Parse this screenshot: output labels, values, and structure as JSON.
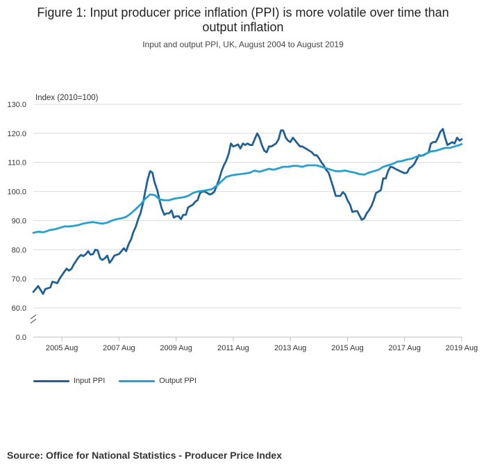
{
  "chart_data": {
    "type": "line",
    "title_line1": "Figure 1: Input producer price inflation (PPI) is more volatile over time than",
    "title_line2": "output inflation",
    "subtitle": "Input and output PPI, UK, August 2004 to August 2019",
    "ylabel": "Index (2010=100)",
    "ylim": [
      60,
      130
    ],
    "y_axis_break": true,
    "y_ticks": [
      "130.0",
      "120.0",
      "110.0",
      "100.0",
      "90.0",
      "80.0",
      "70.0",
      "60.0",
      "0.0"
    ],
    "y_tick_values": [
      130,
      120,
      110,
      100,
      90,
      80,
      70,
      60
    ],
    "x_range": [
      2004.58,
      2019.58
    ],
    "x_ticks": [
      "2005 Aug",
      "2007 Aug",
      "2009 Aug",
      "2011 Aug",
      "2013 Aug",
      "2015 Aug",
      "2017 Aug",
      "2019 Aug"
    ],
    "x_tick_values": [
      2005.58,
      2007.58,
      2009.58,
      2011.58,
      2013.58,
      2015.58,
      2017.58,
      2019.58
    ],
    "grid": true,
    "legend_position": "bottom-left",
    "series": [
      {
        "name": "Input PPI",
        "color": "#206095",
        "points": [
          [
            2004.58,
            65.5
          ],
          [
            2004.75,
            67.5
          ],
          [
            2004.92,
            64.8
          ],
          [
            2005.0,
            66.5
          ],
          [
            2005.17,
            67
          ],
          [
            2005.25,
            69
          ],
          [
            2005.42,
            68.5
          ],
          [
            2005.5,
            70
          ],
          [
            2005.67,
            72.5
          ],
          [
            2005.75,
            73.5
          ],
          [
            2005.83,
            72.8
          ],
          [
            2005.92,
            73.5
          ],
          [
            2006.0,
            75
          ],
          [
            2006.17,
            77.5
          ],
          [
            2006.25,
            78.2
          ],
          [
            2006.33,
            77.8
          ],
          [
            2006.42,
            78.5
          ],
          [
            2006.5,
            79.5
          ],
          [
            2006.58,
            78.3
          ],
          [
            2006.67,
            78.5
          ],
          [
            2006.75,
            80
          ],
          [
            2006.83,
            79.8
          ],
          [
            2006.92,
            77
          ],
          [
            2007.0,
            76.5
          ],
          [
            2007.08,
            77
          ],
          [
            2007.17,
            78
          ],
          [
            2007.25,
            75.5
          ],
          [
            2007.33,
            76.5
          ],
          [
            2007.42,
            78
          ],
          [
            2007.58,
            78.5
          ],
          [
            2007.75,
            80.5
          ],
          [
            2007.83,
            79.5
          ],
          [
            2007.92,
            82
          ],
          [
            2008.0,
            83.5
          ],
          [
            2008.08,
            86
          ],
          [
            2008.17,
            88
          ],
          [
            2008.25,
            90.5
          ],
          [
            2008.33,
            92.5
          ],
          [
            2008.42,
            96
          ],
          [
            2008.5,
            100
          ],
          [
            2008.58,
            104
          ],
          [
            2008.67,
            107
          ],
          [
            2008.75,
            106.5
          ],
          [
            2008.83,
            103
          ],
          [
            2008.92,
            100.5
          ],
          [
            2009.0,
            97
          ],
          [
            2009.08,
            94
          ],
          [
            2009.17,
            92
          ],
          [
            2009.25,
            92.5
          ],
          [
            2009.33,
            92.5
          ],
          [
            2009.42,
            93.5
          ],
          [
            2009.5,
            91
          ],
          [
            2009.58,
            91.5
          ],
          [
            2009.67,
            91.5
          ],
          [
            2009.75,
            90.5
          ],
          [
            2009.83,
            92
          ],
          [
            2009.92,
            92
          ],
          [
            2010.0,
            94.5
          ],
          [
            2010.08,
            95
          ],
          [
            2010.17,
            95.5
          ],
          [
            2010.25,
            96.5
          ],
          [
            2010.33,
            97
          ],
          [
            2010.42,
            99.5
          ],
          [
            2010.5,
            100
          ],
          [
            2010.58,
            100
          ],
          [
            2010.67,
            99.5
          ],
          [
            2010.75,
            99
          ],
          [
            2010.83,
            99.2
          ],
          [
            2010.92,
            100
          ],
          [
            2011.0,
            102
          ],
          [
            2011.08,
            104
          ],
          [
            2011.17,
            107
          ],
          [
            2011.25,
            109
          ],
          [
            2011.33,
            110.5
          ],
          [
            2011.42,
            113
          ],
          [
            2011.5,
            116.5
          ],
          [
            2011.58,
            115.5
          ],
          [
            2011.67,
            115.8
          ],
          [
            2011.75,
            116.2
          ],
          [
            2011.83,
            114.8
          ],
          [
            2011.92,
            116.5
          ],
          [
            2012.0,
            116
          ],
          [
            2012.08,
            116.5
          ],
          [
            2012.17,
            116
          ],
          [
            2012.25,
            116
          ],
          [
            2012.33,
            118
          ],
          [
            2012.42,
            120
          ],
          [
            2012.5,
            118.5
          ],
          [
            2012.58,
            116
          ],
          [
            2012.67,
            114
          ],
          [
            2012.75,
            113.5
          ],
          [
            2012.83,
            115.5
          ],
          [
            2012.92,
            115.5
          ],
          [
            2013.0,
            116
          ],
          [
            2013.08,
            116.5
          ],
          [
            2013.17,
            118
          ],
          [
            2013.25,
            121
          ],
          [
            2013.33,
            121
          ],
          [
            2013.42,
            118.5
          ],
          [
            2013.5,
            117.5
          ],
          [
            2013.58,
            117
          ],
          [
            2013.67,
            118.5
          ],
          [
            2013.75,
            117.5
          ],
          [
            2013.83,
            116.5
          ],
          [
            2013.92,
            115.5
          ],
          [
            2014.0,
            115.5
          ],
          [
            2014.08,
            115
          ],
          [
            2014.17,
            114.5
          ],
          [
            2014.25,
            114
          ],
          [
            2014.33,
            113.5
          ],
          [
            2014.42,
            112.5
          ],
          [
            2014.5,
            112.5
          ],
          [
            2014.58,
            111.5
          ],
          [
            2014.67,
            110
          ],
          [
            2014.75,
            109
          ],
          [
            2014.83,
            107.5
          ],
          [
            2014.92,
            106.5
          ],
          [
            2015.0,
            104
          ],
          [
            2015.08,
            101.5
          ],
          [
            2015.17,
            98.5
          ],
          [
            2015.25,
            98.5
          ],
          [
            2015.33,
            98.5
          ],
          [
            2015.42,
            99.8
          ],
          [
            2015.5,
            99
          ],
          [
            2015.58,
            97
          ],
          [
            2015.67,
            95.5
          ],
          [
            2015.75,
            93
          ],
          [
            2015.83,
            93.2
          ],
          [
            2015.92,
            93.3
          ],
          [
            2016.0,
            91.8
          ],
          [
            2016.08,
            90.3
          ],
          [
            2016.17,
            90.8
          ],
          [
            2016.25,
            92.5
          ],
          [
            2016.33,
            93.5
          ],
          [
            2016.42,
            95
          ],
          [
            2016.5,
            97
          ],
          [
            2016.58,
            99.5
          ],
          [
            2016.67,
            100
          ],
          [
            2016.75,
            100.5
          ],
          [
            2016.83,
            104.5
          ],
          [
            2016.92,
            104.5
          ],
          [
            2017.0,
            107
          ],
          [
            2017.08,
            108.5
          ],
          [
            2017.17,
            108.3
          ],
          [
            2017.25,
            107.8
          ],
          [
            2017.42,
            107
          ],
          [
            2017.58,
            106.3
          ],
          [
            2017.67,
            106.5
          ],
          [
            2017.75,
            108
          ],
          [
            2017.83,
            108.5
          ],
          [
            2017.92,
            109.5
          ],
          [
            2018.0,
            111
          ],
          [
            2018.08,
            112.5
          ],
          [
            2018.17,
            112.3
          ],
          [
            2018.25,
            112.5
          ],
          [
            2018.33,
            113
          ],
          [
            2018.42,
            113.5
          ],
          [
            2018.5,
            116.5
          ],
          [
            2018.58,
            117
          ],
          [
            2018.67,
            117
          ],
          [
            2018.75,
            118.5
          ],
          [
            2018.83,
            120.5
          ],
          [
            2018.92,
            121.5
          ],
          [
            2019.0,
            118.5
          ],
          [
            2019.08,
            116
          ],
          [
            2019.17,
            116.5
          ],
          [
            2019.25,
            117
          ],
          [
            2019.33,
            116.5
          ],
          [
            2019.42,
            118.5
          ],
          [
            2019.5,
            117.5
          ],
          [
            2019.58,
            118
          ]
        ]
      },
      {
        "name": "Output PPI",
        "color": "#27a0cc",
        "points": [
          [
            2004.58,
            85.8
          ],
          [
            2004.75,
            86.2
          ],
          [
            2004.92,
            86
          ],
          [
            2005.0,
            86.2
          ],
          [
            2005.17,
            86.8
          ],
          [
            2005.33,
            87
          ],
          [
            2005.5,
            87.5
          ],
          [
            2005.67,
            88
          ],
          [
            2005.83,
            88
          ],
          [
            2006.0,
            88.2
          ],
          [
            2006.17,
            88.5
          ],
          [
            2006.33,
            89
          ],
          [
            2006.5,
            89.3
          ],
          [
            2006.67,
            89.5
          ],
          [
            2006.83,
            89.2
          ],
          [
            2007.0,
            89
          ],
          [
            2007.17,
            89.3
          ],
          [
            2007.33,
            90
          ],
          [
            2007.5,
            90.5
          ],
          [
            2007.67,
            90.8
          ],
          [
            2007.83,
            91.3
          ],
          [
            2008.0,
            92.5
          ],
          [
            2008.17,
            94
          ],
          [
            2008.33,
            95.5
          ],
          [
            2008.5,
            97.5
          ],
          [
            2008.67,
            99
          ],
          [
            2008.83,
            98.8
          ],
          [
            2009.0,
            97.3
          ],
          [
            2009.17,
            97
          ],
          [
            2009.33,
            97
          ],
          [
            2009.5,
            97.5
          ],
          [
            2009.67,
            97.8
          ],
          [
            2009.83,
            98
          ],
          [
            2010.0,
            98.5
          ],
          [
            2010.17,
            99.5
          ],
          [
            2010.33,
            100
          ],
          [
            2010.5,
            100.2
          ],
          [
            2010.67,
            100.5
          ],
          [
            2010.83,
            100.8
          ],
          [
            2011.0,
            102
          ],
          [
            2011.17,
            103.5
          ],
          [
            2011.33,
            105
          ],
          [
            2011.5,
            105.5
          ],
          [
            2011.67,
            105.8
          ],
          [
            2011.83,
            106
          ],
          [
            2012.0,
            106.2
          ],
          [
            2012.17,
            106.5
          ],
          [
            2012.33,
            107.2
          ],
          [
            2012.5,
            106.8
          ],
          [
            2012.67,
            107.3
          ],
          [
            2012.83,
            107.8
          ],
          [
            2013.0,
            107.5
          ],
          [
            2013.17,
            108
          ],
          [
            2013.33,
            108.5
          ],
          [
            2013.5,
            108.5
          ],
          [
            2013.67,
            108.8
          ],
          [
            2013.83,
            108.8
          ],
          [
            2014.0,
            108.5
          ],
          [
            2014.17,
            109
          ],
          [
            2014.33,
            109
          ],
          [
            2014.5,
            109
          ],
          [
            2014.67,
            108.5
          ],
          [
            2014.83,
            108
          ],
          [
            2015.0,
            107.5
          ],
          [
            2015.17,
            107
          ],
          [
            2015.33,
            107
          ],
          [
            2015.5,
            107.2
          ],
          [
            2015.67,
            106.8
          ],
          [
            2015.83,
            106.5
          ],
          [
            2016.0,
            106
          ],
          [
            2016.17,
            105.8
          ],
          [
            2016.33,
            106.5
          ],
          [
            2016.5,
            107
          ],
          [
            2016.67,
            107.5
          ],
          [
            2016.83,
            108.5
          ],
          [
            2017.0,
            109
          ],
          [
            2017.17,
            109.5
          ],
          [
            2017.33,
            110.3
          ],
          [
            2017.5,
            110.5
          ],
          [
            2017.67,
            111
          ],
          [
            2017.83,
            111.3
          ],
          [
            2018.0,
            112
          ],
          [
            2018.17,
            112.3
          ],
          [
            2018.33,
            113
          ],
          [
            2018.5,
            113.8
          ],
          [
            2018.67,
            114
          ],
          [
            2018.83,
            114.5
          ],
          [
            2019.0,
            115
          ],
          [
            2019.17,
            115
          ],
          [
            2019.33,
            115.5
          ],
          [
            2019.5,
            116
          ],
          [
            2019.58,
            116.3
          ]
        ]
      }
    ]
  },
  "source": "Source: Office for National Statistics - Producer Price Index"
}
